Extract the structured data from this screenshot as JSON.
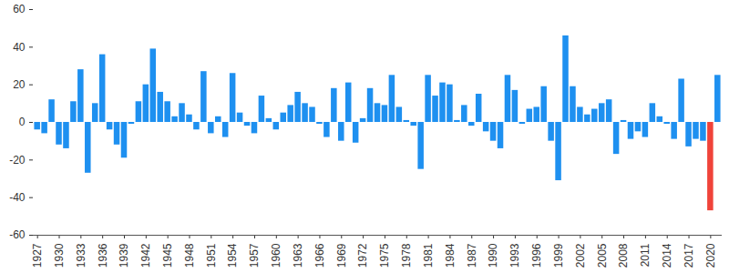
{
  "chart_data": {
    "type": "bar",
    "categories": [
      "1927",
      null,
      null,
      "1930",
      null,
      null,
      "1933",
      null,
      null,
      "1936",
      null,
      null,
      "1939",
      null,
      null,
      "1942",
      null,
      null,
      "1945",
      null,
      null,
      "1948",
      null,
      null,
      "1951",
      null,
      null,
      "1954",
      null,
      null,
      "1957",
      null,
      null,
      "1960",
      null,
      null,
      "1963",
      null,
      null,
      "1966",
      null,
      null,
      "1969",
      null,
      null,
      "1972",
      null,
      null,
      "1975",
      null,
      null,
      "1978",
      null,
      null,
      "1981",
      null,
      null,
      "1984",
      null,
      null,
      "1987",
      null,
      null,
      "1990",
      null,
      null,
      "1993",
      null,
      null,
      "1996",
      null,
      null,
      "1999",
      null,
      null,
      "2002",
      null,
      null,
      "2005",
      null,
      null,
      "2008",
      null,
      null,
      "2011",
      null,
      null,
      "2014",
      null,
      null,
      "2017",
      null,
      null,
      "2020",
      null
    ],
    "values": [
      -4,
      -6,
      12,
      -12,
      -14,
      11,
      28,
      -27,
      10,
      36,
      -4,
      -12,
      -19,
      -1,
      11,
      20,
      39,
      16,
      11,
      3,
      10,
      4,
      -4,
      27,
      -6,
      3,
      -8,
      26,
      5,
      -2,
      -6,
      14,
      2,
      -4,
      5,
      9,
      16,
      10,
      8,
      -1,
      -8,
      18,
      -10,
      21,
      -11,
      2,
      18,
      10,
      9,
      25,
      8,
      1,
      -2,
      -25,
      25,
      14,
      21,
      20,
      1,
      9,
      -2,
      15,
      -5,
      -10,
      -14,
      25,
      17,
      -1,
      7,
      8,
      19,
      -10,
      -31,
      46,
      19,
      8,
      4,
      7,
      10,
      12,
      -17,
      1,
      -9,
      -5,
      -8,
      10,
      3,
      -1,
      -9,
      23,
      -13,
      -9,
      -10,
      -47,
      25
    ],
    "colors": [
      "#1e90f0",
      "#1e90f0",
      "#1e90f0",
      "#1e90f0",
      "#1e90f0",
      "#1e90f0",
      "#1e90f0",
      "#1e90f0",
      "#1e90f0",
      "#1e90f0",
      "#1e90f0",
      "#1e90f0",
      "#1e90f0",
      "#1e90f0",
      "#1e90f0",
      "#1e90f0",
      "#1e90f0",
      "#1e90f0",
      "#1e90f0",
      "#1e90f0",
      "#1e90f0",
      "#1e90f0",
      "#1e90f0",
      "#1e90f0",
      "#1e90f0",
      "#1e90f0",
      "#1e90f0",
      "#1e90f0",
      "#1e90f0",
      "#1e90f0",
      "#1e90f0",
      "#1e90f0",
      "#1e90f0",
      "#1e90f0",
      "#1e90f0",
      "#1e90f0",
      "#1e90f0",
      "#1e90f0",
      "#1e90f0",
      "#1e90f0",
      "#1e90f0",
      "#1e90f0",
      "#1e90f0",
      "#1e90f0",
      "#1e90f0",
      "#1e90f0",
      "#1e90f0",
      "#1e90f0",
      "#1e90f0",
      "#1e90f0",
      "#1e90f0",
      "#1e90f0",
      "#1e90f0",
      "#1e90f0",
      "#1e90f0",
      "#1e90f0",
      "#1e90f0",
      "#1e90f0",
      "#1e90f0",
      "#1e90f0",
      "#1e90f0",
      "#1e90f0",
      "#1e90f0",
      "#1e90f0",
      "#1e90f0",
      "#1e90f0",
      "#1e90f0",
      "#1e90f0",
      "#1e90f0",
      "#1e90f0",
      "#1e90f0",
      "#1e90f0",
      "#1e90f0",
      "#1e90f0",
      "#1e90f0",
      "#1e90f0",
      "#1e90f0",
      "#1e90f0",
      "#1e90f0",
      "#1e90f0",
      "#1e90f0",
      "#1e90f0",
      "#1e90f0",
      "#1e90f0",
      "#1e90f0",
      "#1e90f0",
      "#1e90f0",
      "#1e90f0",
      "#1e90f0",
      "#1e90f0",
      "#1e90f0",
      "#1e90f0",
      "#1e90f0",
      "#f0433a",
      "#1e90f0"
    ],
    "ylim": [
      -60,
      60
    ],
    "yticks": [
      -60,
      -40,
      -20,
      0,
      20,
      40,
      60
    ],
    "grid": false
  }
}
